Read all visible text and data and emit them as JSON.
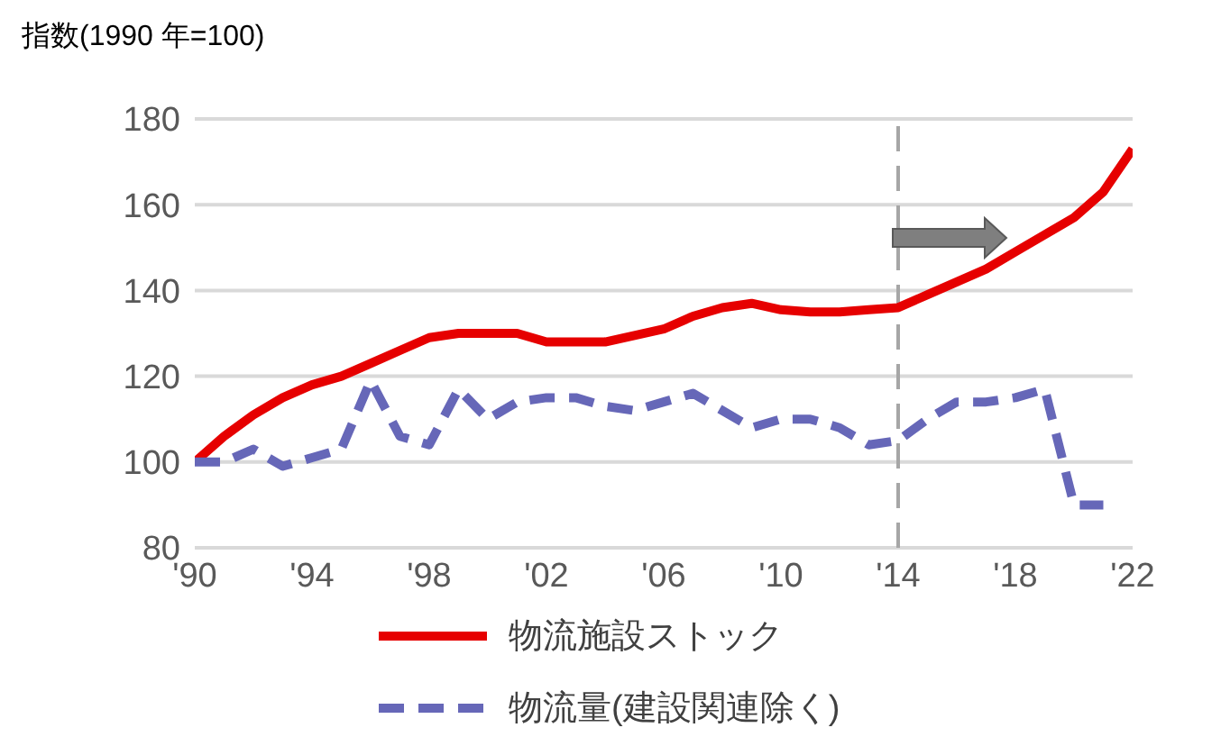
{
  "chart_data": {
    "type": "line",
    "title": "指数(1990 年=100)",
    "x": [
      1990,
      1991,
      1992,
      1993,
      1994,
      1995,
      1996,
      1997,
      1998,
      1999,
      2000,
      2001,
      2002,
      2003,
      2004,
      2005,
      2006,
      2007,
      2008,
      2009,
      2010,
      2011,
      2012,
      2013,
      2014,
      2015,
      2016,
      2017,
      2018,
      2019,
      2020,
      2021,
      2022
    ],
    "series": [
      {
        "name": "物流施設ストック",
        "color": "#e60000",
        "line_style": "solid",
        "values": [
          100,
          106,
          111,
          115,
          118,
          120,
          123,
          126,
          129,
          130,
          130,
          130,
          128,
          128,
          128,
          129.5,
          131,
          134,
          136,
          137,
          135.5,
          135,
          135,
          135.5,
          136,
          139,
          142,
          145,
          149,
          153,
          157,
          163,
          173
        ]
      },
      {
        "name": "物流量(建設関連除く)",
        "color": "#6667b8",
        "line_style": "dashed",
        "values": [
          100,
          100,
          103,
          99,
          101,
          103,
          119,
          106,
          104,
          117,
          110,
          114,
          115,
          115,
          113,
          112,
          114,
          116,
          112,
          108,
          110,
          110,
          108,
          104,
          105,
          110,
          114,
          114,
          115,
          117,
          90,
          90,
          null
        ]
      }
    ],
    "xlim": [
      1990,
      2022
    ],
    "xticks": [
      {
        "value": 1990,
        "label": "'90"
      },
      {
        "value": 1994,
        "label": "'94"
      },
      {
        "value": 1998,
        "label": "'98"
      },
      {
        "value": 2002,
        "label": "'02"
      },
      {
        "value": 2006,
        "label": "'06"
      },
      {
        "value": 2010,
        "label": "'10"
      },
      {
        "value": 2014,
        "label": "'14"
      },
      {
        "value": 2018,
        "label": "'18"
      },
      {
        "value": 2022,
        "label": "'22"
      }
    ],
    "ylim": [
      80,
      180
    ],
    "yticks": [
      80,
      100,
      120,
      140,
      160,
      180
    ],
    "grid": "y",
    "legend": "bottom",
    "marker": "none",
    "ref_lines": [
      {
        "axis": "x",
        "value": 2014,
        "color": "#a6a6a6",
        "line_style": "dashed"
      }
    ]
  }
}
